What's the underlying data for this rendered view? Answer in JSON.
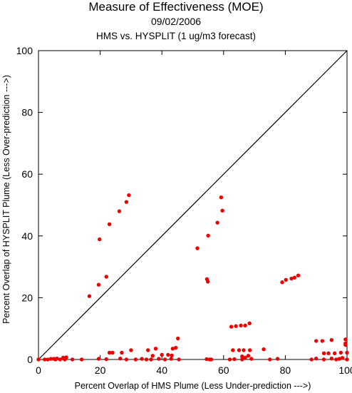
{
  "title_lines": [
    "Measure of Effectiveness (MOE)",
    "09/02/2006",
    "HMS vs. HYSPLIT  (1 ug/m3 forecast)"
  ],
  "chart_data": {
    "type": "scatter",
    "title": "Measure of Effectiveness (MOE)",
    "subtitle": "09/02/2006",
    "subtitle2": "HMS vs. HYSPLIT  (1 ug/m3 forecast)",
    "xlabel": "Percent Overlap of HMS Plume (Less Under-prediction --->)",
    "ylabel": "Percent Overlap of HYSPLIT Plume (Less Over-prediction --->)",
    "xlim": [
      0,
      100
    ],
    "ylim": [
      0,
      100
    ],
    "xticks": [
      0,
      20,
      40,
      60,
      80,
      100
    ],
    "yticks": [
      0,
      20,
      40,
      60,
      80,
      100
    ],
    "diagonal_line": [
      [
        0,
        0
      ],
      [
        100,
        100
      ]
    ],
    "point_color": "#ee0000",
    "line_color": "#000000",
    "grid": false,
    "points": [
      [
        16.5,
        20.5
      ],
      [
        19.5,
        24.2
      ],
      [
        19.8,
        38.9
      ],
      [
        22.0,
        26.8
      ],
      [
        23.0,
        43.8
      ],
      [
        26.2,
        48.0
      ],
      [
        28.5,
        51.0
      ],
      [
        29.3,
        53.2
      ],
      [
        51.5,
        36.0
      ],
      [
        55.0,
        40.1
      ],
      [
        54.6,
        26.0
      ],
      [
        54.9,
        25.2
      ],
      [
        58.0,
        44.3
      ],
      [
        59.2,
        52.5
      ],
      [
        59.6,
        48.2
      ],
      [
        62.5,
        10.6
      ],
      [
        64.0,
        10.8
      ],
      [
        65.6,
        11.0
      ],
      [
        67.0,
        11.0
      ],
      [
        68.4,
        11.7
      ],
      [
        79.0,
        25.0
      ],
      [
        80.2,
        25.8
      ],
      [
        82.0,
        26.2
      ],
      [
        83.0,
        26.5
      ],
      [
        84.2,
        27.2
      ],
      [
        23.0,
        2.2
      ],
      [
        24.0,
        2.2
      ],
      [
        27.0,
        2.2
      ],
      [
        30.0,
        3.0
      ],
      [
        35.5,
        3.0
      ],
      [
        38.0,
        3.5
      ],
      [
        40.0,
        1.5
      ],
      [
        42.0,
        1.5
      ],
      [
        43.5,
        3.5
      ],
      [
        44.5,
        3.8
      ],
      [
        45.2,
        6.8
      ],
      [
        63.0,
        3.0
      ],
      [
        65.0,
        3.0
      ],
      [
        66.5,
        3.0
      ],
      [
        68.5,
        3.0
      ],
      [
        73.0,
        3.3
      ],
      [
        90.0,
        6.0
      ],
      [
        92.0,
        6.0
      ],
      [
        95.0,
        6.3
      ],
      [
        99.5,
        6.5
      ],
      [
        92.5,
        2.0
      ],
      [
        94.0,
        2.0
      ],
      [
        96.0,
        2.0
      ],
      [
        98.0,
        2.2
      ],
      [
        100.0,
        2.2
      ],
      [
        99.5,
        4.7
      ],
      [
        99.5,
        5.2
      ],
      [
        43.2,
        1.3
      ],
      [
        37.0,
        1.2
      ],
      [
        8.0,
        0.6
      ],
      [
        9.0,
        0.7
      ],
      [
        66.0,
        1.0
      ],
      [
        67.0,
        0.6
      ],
      [
        68.0,
        1.2
      ],
      [
        0.0,
        0.0
      ],
      [
        2.0,
        0.0
      ],
      [
        3.0,
        0.0
      ],
      [
        4.0,
        0.2
      ],
      [
        5.0,
        0.2
      ],
      [
        5.5,
        0.0
      ],
      [
        6.0,
        0.3
      ],
      [
        7.0,
        0.0
      ],
      [
        8.5,
        0.0
      ],
      [
        11.0,
        0.0
      ],
      [
        14.0,
        0.0
      ],
      [
        19.5,
        0.2
      ],
      [
        22.0,
        0.1
      ],
      [
        26.5,
        0.3
      ],
      [
        28.5,
        0.0
      ],
      [
        31.5,
        0.0
      ],
      [
        33.5,
        0.2
      ],
      [
        35.0,
        0.0
      ],
      [
        36.5,
        0.0
      ],
      [
        39.0,
        0.2
      ],
      [
        41.0,
        0.0
      ],
      [
        43.0,
        0.2
      ],
      [
        45.5,
        0.0
      ],
      [
        54.5,
        0.1
      ],
      [
        55.5,
        0.0
      ],
      [
        56.0,
        0.0
      ],
      [
        62.0,
        0.0
      ],
      [
        63.5,
        0.1
      ],
      [
        66.0,
        0.0
      ],
      [
        69.0,
        0.2
      ],
      [
        75.0,
        0.0
      ],
      [
        77.5,
        0.2
      ],
      [
        88.5,
        0.0
      ],
      [
        90.0,
        0.3
      ],
      [
        92.5,
        0.0
      ],
      [
        95.0,
        0.3
      ],
      [
        96.5,
        0.0
      ],
      [
        97.5,
        0.2
      ],
      [
        98.5,
        0.5
      ],
      [
        100.0,
        0.0
      ]
    ]
  }
}
